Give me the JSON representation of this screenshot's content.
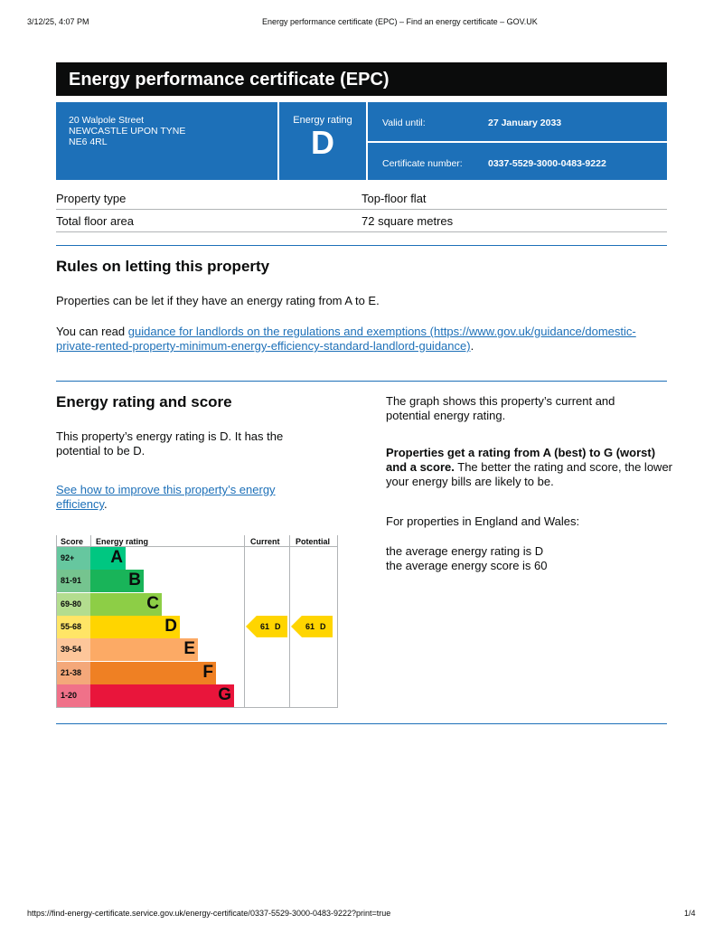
{
  "print_header": {
    "datetime": "3/12/25, 4:07 PM",
    "title": "Energy performance certificate (EPC) – Find an energy certificate – GOV.UK"
  },
  "title": "Energy performance certificate (EPC)",
  "summary": {
    "address": [
      "20 Walpole Street",
      "NEWCASTLE UPON TYNE",
      "NE6 4RL"
    ],
    "rating_label": "Energy rating",
    "rating": "D",
    "valid_label": "Valid until:",
    "valid_value": "27 January 2033",
    "cert_label": "Certificate number:",
    "cert_value": "0337-5529-3000-0483-9222"
  },
  "details": [
    {
      "label": "Property type",
      "value": "Top-floor flat"
    },
    {
      "label": "Total floor area",
      "value": "72 square metres"
    }
  ],
  "letting": {
    "heading": "Rules on letting this property",
    "para": "Properties can be let if they have an energy rating from A to E.",
    "read_prefix": "You can read ",
    "link": "guidance for landlords on the regulations and exemptions (https://www.gov.uk/guidance/domestic-private-rented-property-minimum-energy-efficiency-standard-landlord-guidance)",
    "read_suffix": "."
  },
  "rating_section": {
    "heading": "Energy rating and score",
    "para": "This property’s energy rating is D. It has the potential to be D.",
    "improve_link": "See how to improve this property’s energy efficiency",
    "improve_suffix": ".",
    "graph_text": "The graph shows this property’s current and potential energy rating.",
    "bold_text": "Properties get a rating from A (best) to G (worst) and a score.",
    "rest_text": " The better the rating and score, the lower your energy bills are likely to be.",
    "avg_intro": "For properties in England and Wales:",
    "avg_rating": "the average energy rating is D",
    "avg_score": "the average energy score is 60"
  },
  "chart_data": {
    "type": "table",
    "headers": [
      "Score",
      "Energy rating",
      "Current",
      "Potential"
    ],
    "bands": [
      {
        "score": "92+",
        "letter": "A",
        "color": "#00c781",
        "score_bg": "#66c79f"
      },
      {
        "score": "81-91",
        "letter": "B",
        "color": "#19b459",
        "score_bg": "#75c48f"
      },
      {
        "score": "69-80",
        "letter": "C",
        "color": "#8dce46",
        "score_bg": "#b3dd8f"
      },
      {
        "score": "55-68",
        "letter": "D",
        "color": "#ffd500",
        "score_bg": "#ffe566"
      },
      {
        "score": "39-54",
        "letter": "E",
        "color": "#fcaa65",
        "score_bg": "#fdc69a"
      },
      {
        "score": "21-38",
        "letter": "F",
        "color": "#ef8023",
        "score_bg": "#f4a87a"
      },
      {
        "score": "1-20",
        "letter": "G",
        "color": "#e9153b",
        "score_bg": "#f07189"
      }
    ],
    "current": {
      "score": "61",
      "letter": "D"
    },
    "potential": {
      "score": "61",
      "letter": "D"
    }
  },
  "print_footer": {
    "url": "https://find-energy-certificate.service.gov.uk/energy-certificate/0337-5529-3000-0483-9222?print=true",
    "page": "1/4"
  }
}
